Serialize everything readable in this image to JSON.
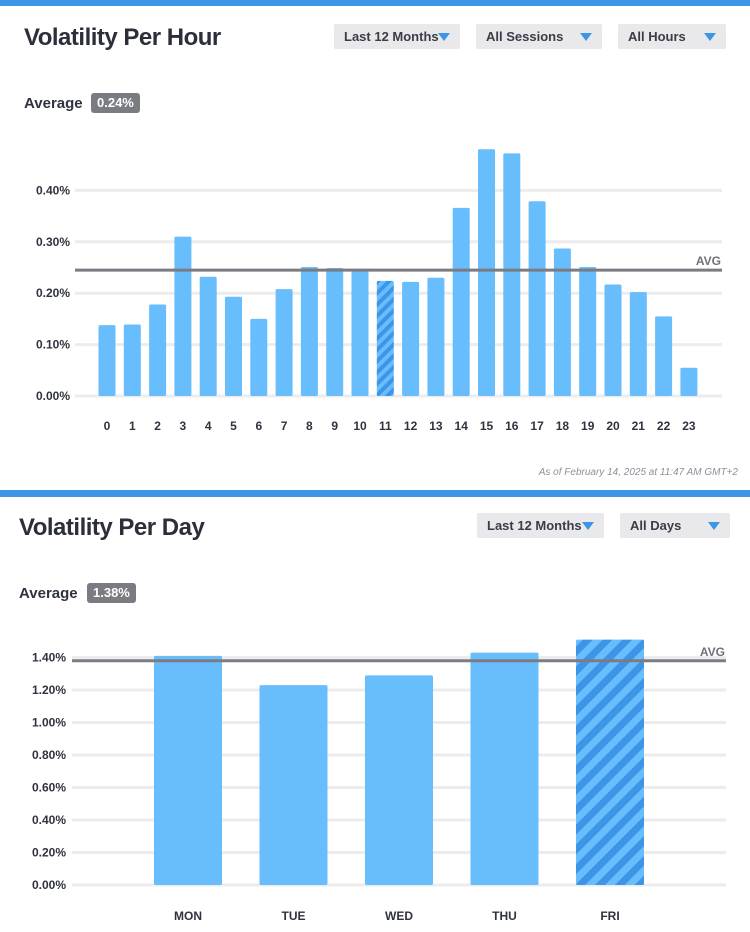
{
  "panels": {
    "hour": {
      "title": "Volatility Per Hour",
      "subtitle": "",
      "filters": {
        "period": "Last 12 Months",
        "sessions": "All Sessions",
        "hours": "All Hours"
      },
      "average_label": "Average",
      "average_value": "0.24%",
      "timestamp": "As of February 14, 2025 at 11:47 AM GMT+2"
    },
    "day": {
      "title": "Volatility Per Day",
      "filters": {
        "period": "Last 12 Months",
        "days": "All Days"
      },
      "average_label": "Average",
      "average_value": "1.38%"
    }
  },
  "colors": {
    "bar": "#68bdfc",
    "bar_highlight_stripe": "#3d95e8",
    "avg_line": "#7a7c82",
    "accent": "#3d95e8"
  },
  "chart_data": [
    {
      "type": "bar",
      "categories": [
        "0",
        "1",
        "2",
        "3",
        "4",
        "5",
        "6",
        "7",
        "8",
        "9",
        "10",
        "11",
        "12",
        "13",
        "14",
        "15",
        "16",
        "17",
        "18",
        "19",
        "20",
        "21",
        "22",
        "23"
      ],
      "values": [
        0.138,
        0.139,
        0.178,
        0.31,
        0.232,
        0.193,
        0.15,
        0.208,
        0.251,
        0.249,
        0.247,
        0.224,
        0.222,
        0.23,
        0.366,
        0.48,
        0.472,
        0.379,
        0.287,
        0.251,
        0.217,
        0.202,
        0.155,
        0.055
      ],
      "highlighted_category": "11",
      "average": 0.245,
      "average_label": "AVG",
      "yticks": [
        "0.00%",
        "0.10%",
        "0.20%",
        "0.30%",
        "0.40%"
      ],
      "ylim": [
        0,
        0.5
      ],
      "grid": true
    },
    {
      "type": "bar",
      "categories": [
        "MON",
        "TUE",
        "WED",
        "THU",
        "FRI"
      ],
      "values": [
        1.41,
        1.23,
        1.29,
        1.43,
        1.51
      ],
      "highlighted_category": "FRI",
      "average": 1.38,
      "average_label": "AVG",
      "yticks": [
        "0.00%",
        "0.20%",
        "0.40%",
        "0.60%",
        "0.80%",
        "1.00%",
        "1.20%",
        "1.40%"
      ],
      "ylim": [
        0,
        1.6
      ],
      "grid": true
    }
  ]
}
